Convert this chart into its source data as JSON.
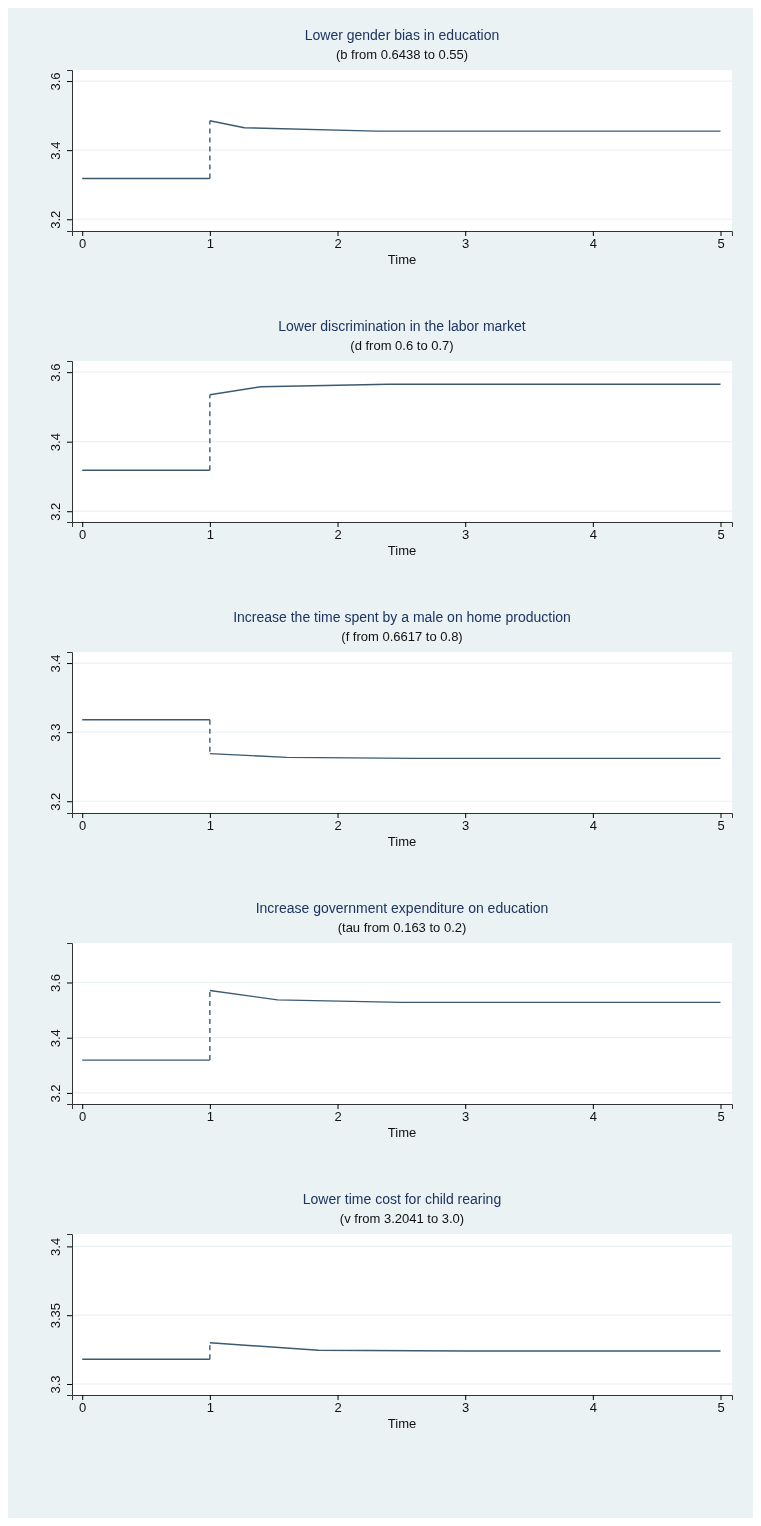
{
  "chart_data": [
    {
      "type": "line",
      "title": "Lower gender bias in education",
      "subtitle": "(b from 0.6438 to 0.55)",
      "xlabel": "Time",
      "xlim": [
        -0.08,
        5.09
      ],
      "xticks": [
        0,
        1,
        2,
        3,
        4,
        5
      ],
      "ylim": [
        3.166,
        3.632
      ],
      "yticks": [
        3.2,
        3.4,
        3.6
      ],
      "grid": "y",
      "series": [
        {
          "color": "#3b5a72",
          "line_style": "solid",
          "x": [
            0,
            1
          ],
          "values": [
            3.318,
            3.318
          ]
        },
        {
          "color": "#3b5a72",
          "line_style": "dashed",
          "x": [
            1,
            1
          ],
          "values": [
            3.318,
            3.485
          ]
        },
        {
          "color": "#3b5a72",
          "line_style": "solid",
          "x": [
            1,
            1.27,
            2.3,
            3,
            4,
            5
          ],
          "values": [
            3.485,
            3.465,
            3.455,
            3.455,
            3.455,
            3.455
          ]
        }
      ]
    },
    {
      "type": "line",
      "title": "Lower discrimination in the labor market",
      "subtitle": "(d from 0.6 to 0.7)",
      "xlabel": "Time",
      "xlim": [
        -0.08,
        5.09
      ],
      "xticks": [
        0,
        1,
        2,
        3,
        4,
        5
      ],
      "ylim": [
        3.169,
        3.632
      ],
      "yticks": [
        3.2,
        3.4,
        3.6
      ],
      "grid": "y",
      "series": [
        {
          "color": "#3b5a72",
          "line_style": "solid",
          "x": [
            0,
            1
          ],
          "values": [
            3.318,
            3.318
          ]
        },
        {
          "color": "#3b5a72",
          "line_style": "dashed",
          "x": [
            1,
            1
          ],
          "values": [
            3.318,
            3.535
          ]
        },
        {
          "color": "#3b5a72",
          "line_style": "solid",
          "x": [
            1,
            1.4,
            2.4,
            3,
            4,
            5
          ],
          "values": [
            3.535,
            3.558,
            3.565,
            3.565,
            3.565,
            3.565
          ]
        }
      ]
    },
    {
      "type": "line",
      "title": "Increase the time spent by a male on home production",
      "subtitle": "(f from 0.6617 to 0.8)",
      "xlabel": "Time",
      "xlim": [
        -0.08,
        5.09
      ],
      "xticks": [
        0,
        1,
        2,
        3,
        4,
        5
      ],
      "ylim": [
        3.183,
        3.416
      ],
      "yticks": [
        3.2,
        3.3,
        3.4
      ],
      "grid": "y",
      "series": [
        {
          "color": "#3b5a72",
          "line_style": "solid",
          "x": [
            0,
            1
          ],
          "values": [
            3.318,
            3.318
          ]
        },
        {
          "color": "#3b5a72",
          "line_style": "dashed",
          "x": [
            1,
            1
          ],
          "values": [
            3.318,
            3.269
          ]
        },
        {
          "color": "#3b5a72",
          "line_style": "solid",
          "x": [
            1,
            1.6,
            2.6,
            3,
            4,
            5
          ],
          "values": [
            3.269,
            3.2635,
            3.262,
            3.262,
            3.262,
            3.262
          ]
        }
      ]
    },
    {
      "type": "line",
      "title": "Increase government expenditure on education",
      "subtitle": "(tau from 0.163 to 0.2)",
      "xlabel": "Time",
      "xlim": [
        -0.08,
        5.09
      ],
      "xticks": [
        0,
        1,
        2,
        3,
        4,
        5
      ],
      "ylim": [
        3.16,
        3.743
      ],
      "yticks": [
        3.2,
        3.4,
        3.6
      ],
      "grid": "y",
      "series": [
        {
          "color": "#3b5a72",
          "line_style": "solid",
          "x": [
            0,
            1
          ],
          "values": [
            3.319,
            3.319
          ]
        },
        {
          "color": "#3b5a72",
          "line_style": "dashed",
          "x": [
            1,
            1
          ],
          "values": [
            3.319,
            3.571
          ]
        },
        {
          "color": "#3b5a72",
          "line_style": "solid",
          "x": [
            1,
            1.53,
            2.5,
            3,
            4,
            5
          ],
          "values": [
            3.571,
            3.537,
            3.528,
            3.528,
            3.528,
            3.528
          ]
        }
      ]
    },
    {
      "type": "line",
      "title": "Lower time cost for child rearing",
      "subtitle": "(v from 3.2041 to 3.0)",
      "xlabel": "Time",
      "xlim": [
        -0.08,
        5.09
      ],
      "xticks": [
        0,
        1,
        2,
        3,
        4,
        5
      ],
      "ylim": [
        3.292,
        3.409
      ],
      "yticks": [
        3.3,
        3.35,
        3.4
      ],
      "grid": "y",
      "series": [
        {
          "color": "#3b5a72",
          "line_style": "solid",
          "x": [
            0,
            1
          ],
          "values": [
            3.318,
            3.318
          ]
        },
        {
          "color": "#3b5a72",
          "line_style": "dashed",
          "x": [
            1,
            1
          ],
          "values": [
            3.318,
            3.33
          ]
        },
        {
          "color": "#3b5a72",
          "line_style": "solid",
          "x": [
            1,
            1.85,
            3,
            4,
            5
          ],
          "values": [
            3.33,
            3.3245,
            3.324,
            3.324,
            3.324
          ]
        }
      ]
    }
  ]
}
